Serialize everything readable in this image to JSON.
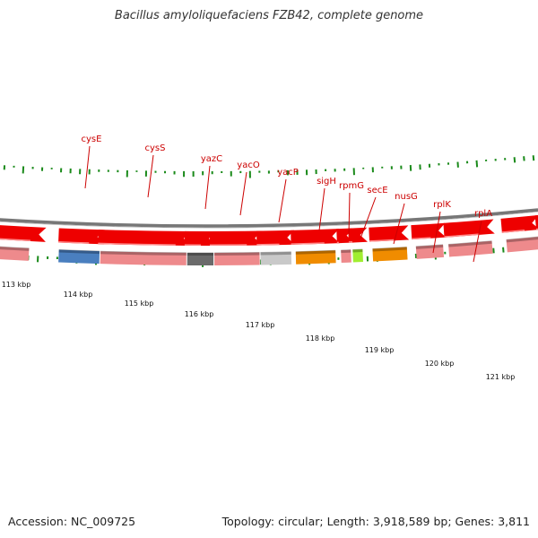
{
  "header": {
    "title": "Bacillus amyloliquefaciens FZB42, complete genome"
  },
  "footer": {
    "accession": "Accession: NC_009725",
    "summary": "Topology: circular; Length: 3,918,589 bp; Genes: 3,811"
  },
  "scale": {
    "unit": "kbp",
    "labels": [
      "113 kbp",
      "114 kbp",
      "115 kbp",
      "116 kbp",
      "117 kbp",
      "118 kbp",
      "119 kbp",
      "120 kbp",
      "121 kbp"
    ]
  },
  "genes": [
    {
      "name": "cysE",
      "color": "#4a7fbf"
    },
    {
      "name": "cysS",
      "color": "#ee8a8c"
    },
    {
      "name": "yazC",
      "color": "#6b6b6b"
    },
    {
      "name": "yacO",
      "color": "#ee8a8c"
    },
    {
      "name": "yacP",
      "color": "#c9c9c9"
    },
    {
      "name": "sigH",
      "color": "#f08c00"
    },
    {
      "name": "rpmG",
      "color": "#ee8a8c"
    },
    {
      "name": "secE",
      "color": "#a0ee30"
    },
    {
      "name": "nusG",
      "color": "#f08c00"
    },
    {
      "name": "rplK",
      "color": "#ee8a8c"
    },
    {
      "name": "rplA",
      "color": "#ee8a8c"
    }
  ],
  "colors": {
    "label": "#cc0000",
    "cds_arrow": "#ee0000",
    "tick": "#1a8a1a",
    "backbone": "#777777"
  }
}
